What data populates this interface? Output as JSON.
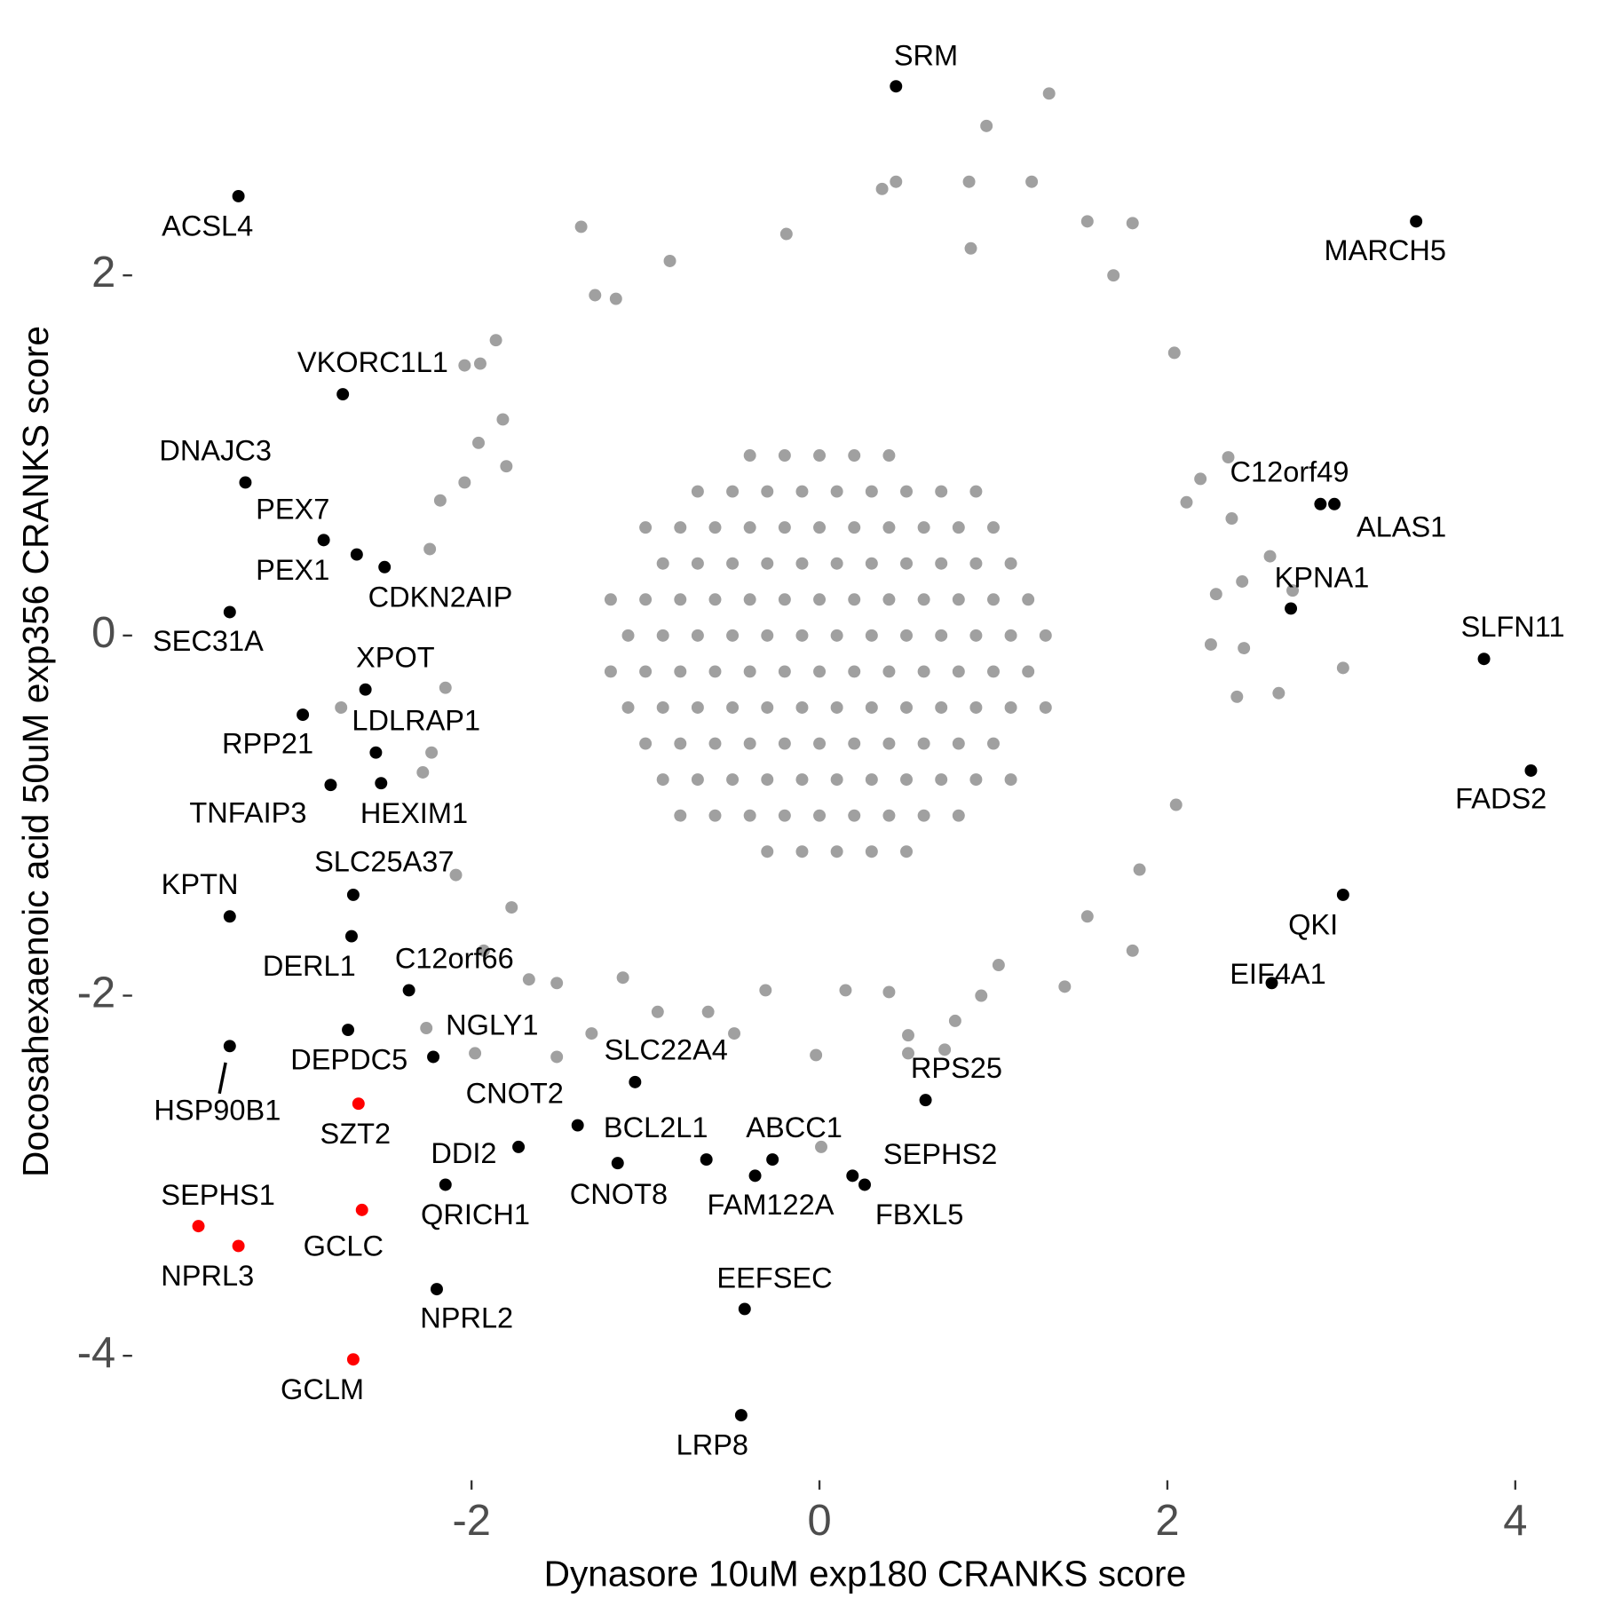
{
  "chart_data": {
    "type": "scatter",
    "xlabel": "Dynasore 10uM exp180 CRANKS score",
    "ylabel": "Docosahexaenoic acid 50uM exp356 CRANKS score",
    "xlim": [
      -3.88,
      4.25
    ],
    "ylim": [
      -4.64,
      3.3
    ],
    "xticks": [
      -2,
      0,
      2,
      4
    ],
    "yticks": [
      -4,
      -2,
      0,
      2
    ],
    "grid": false,
    "series": [
      {
        "color": "#a0a0a0",
        "x": [
          -0.4,
          -0.2,
          0,
          0.2,
          0.4,
          -0.7,
          -0.5,
          -0.3,
          -0.1,
          0.1,
          0.3,
          0.5,
          0.7,
          0.9,
          -1.0,
          -0.8,
          -0.6,
          -0.4,
          -0.2,
          0,
          0.2,
          0.4,
          0.6,
          0.8,
          1.0,
          -0.9,
          -0.7,
          -0.5,
          -0.3,
          -0.1,
          0.1,
          0.3,
          0.5,
          0.7,
          0.9,
          1.1,
          -1.2,
          -1.0,
          -0.8,
          -0.6,
          -0.4,
          -0.2,
          0,
          0.2,
          0.4,
          0.6,
          0.8,
          1.0,
          1.2,
          -1.1,
          -0.9,
          -0.7,
          -0.5,
          -0.3,
          -0.1,
          0.1,
          0.3,
          0.5,
          0.7,
          0.9,
          1.1,
          1.3,
          -1.2,
          -1.0,
          -0.8,
          -0.6,
          -0.4,
          -0.2,
          0,
          0.2,
          0.4,
          0.6,
          0.8,
          1.0,
          1.2,
          -1.1,
          -0.9,
          -0.7,
          -0.5,
          -0.3,
          -0.1,
          0.1,
          0.3,
          0.5,
          0.7,
          0.9,
          1.1,
          1.3,
          -1.0,
          -0.8,
          -0.6,
          -0.4,
          -0.2,
          0,
          0.2,
          0.4,
          0.6,
          0.8,
          1.0,
          -0.9,
          -0.7,
          -0.5,
          -0.3,
          -0.1,
          0.1,
          0.3,
          0.5,
          0.7,
          0.9,
          1.1,
          -0.8,
          -0.6,
          -0.4,
          -0.2,
          0,
          0.2,
          0.4,
          0.6,
          0.8,
          -0.3,
          -0.1,
          0.1,
          0.3,
          0.5,
          1.32,
          0.96,
          0.36,
          0.44,
          0.86,
          1.22,
          1.54,
          1.8,
          -1.37,
          -0.19,
          1.69,
          0.87,
          -0.86,
          -1.29,
          -1.17,
          -1.86,
          -1.95,
          -2.04,
          2.04,
          -1.82,
          -1.96,
          2.35,
          2.19,
          -1.8,
          -2.04,
          -2.18,
          2.11,
          2.37,
          -2.24,
          2.59,
          2.72,
          2.43,
          2.28,
          3.01,
          2.64,
          2.4,
          2.25,
          2.44,
          -2.75,
          -2.15,
          -2.23,
          -2.28,
          2.05,
          1.84,
          1.54,
          1.8,
          1.03,
          1.41,
          -1.93,
          -2.09,
          0.51,
          0.51,
          0.01,
          -1.98,
          -2.26,
          -1.51,
          -1.31,
          -0.02,
          -0.49,
          -0.64,
          -0.93,
          -0.31,
          -1.67,
          -1.51,
          0.72,
          0.78,
          0.93,
          0.15,
          0.4,
          -1.13,
          -1.77
        ],
        "values": [
          1.0,
          1.0,
          1.0,
          1.0,
          1.0,
          0.8,
          0.8,
          0.8,
          0.8,
          0.8,
          0.8,
          0.8,
          0.8,
          0.8,
          0.6,
          0.6,
          0.6,
          0.6,
          0.6,
          0.6,
          0.6,
          0.6,
          0.6,
          0.6,
          0.6,
          0.4,
          0.4,
          0.4,
          0.4,
          0.4,
          0.4,
          0.4,
          0.4,
          0.4,
          0.4,
          0.4,
          0.2,
          0.2,
          0.2,
          0.2,
          0.2,
          0.2,
          0.2,
          0.2,
          0.2,
          0.2,
          0.2,
          0.2,
          0.2,
          0,
          0,
          0,
          0,
          0,
          0,
          0,
          0,
          0,
          0,
          0,
          0,
          0,
          -0.2,
          -0.2,
          -0.2,
          -0.2,
          -0.2,
          -0.2,
          -0.2,
          -0.2,
          -0.2,
          -0.2,
          -0.2,
          -0.2,
          -0.2,
          -0.4,
          -0.4,
          -0.4,
          -0.4,
          -0.4,
          -0.4,
          -0.4,
          -0.4,
          -0.4,
          -0.4,
          -0.4,
          -0.4,
          -0.4,
          -0.6,
          -0.6,
          -0.6,
          -0.6,
          -0.6,
          -0.6,
          -0.6,
          -0.6,
          -0.6,
          -0.6,
          -0.6,
          -0.8,
          -0.8,
          -0.8,
          -0.8,
          -0.8,
          -0.8,
          -0.8,
          -0.8,
          -0.8,
          -0.8,
          -0.8,
          -1.0,
          -1.0,
          -1.0,
          -1.0,
          -1.0,
          -1.0,
          -1.0,
          -1.0,
          -1.0,
          -1.2,
          -1.2,
          -1.2,
          -1.2,
          -1.2,
          3.01,
          2.83,
          2.48,
          2.52,
          2.52,
          2.52,
          2.3,
          2.29,
          2.27,
          2.23,
          2.0,
          2.15,
          2.08,
          1.89,
          1.87,
          1.64,
          1.51,
          1.5,
          1.57,
          1.2,
          1.07,
          0.99,
          0.87,
          0.94,
          0.85,
          0.75,
          0.74,
          0.65,
          0.48,
          0.44,
          0.25,
          0.3,
          0.23,
          -0.18,
          -0.32,
          -0.34,
          -0.05,
          -0.07,
          -0.4,
          -0.29,
          -0.65,
          -0.76,
          -0.94,
          -1.3,
          -1.56,
          -1.75,
          -1.83,
          -1.95,
          -1.75,
          -1.33,
          -2.22,
          -2.32,
          -2.84,
          -2.32,
          -2.18,
          -2.34,
          -2.21,
          -2.33,
          -2.21,
          -2.09,
          -2.09,
          -1.97,
          -1.91,
          -1.93,
          -2.3,
          -2.14,
          -2.0,
          -1.97,
          -1.98,
          -1.9,
          -1.51
        ]
      },
      {
        "color": "#000000",
        "labels": [
          "SRM",
          "ACSL4",
          "MARCH5",
          "VKORC1L1",
          "DNAJC3",
          "PEX7",
          "PEX1",
          "CDKN2AIP",
          "SEC31A",
          "C12orf49",
          "ALAS1",
          "KPNA1",
          "SLFN11",
          "XPOT",
          "RPP21",
          "LDLRAP1",
          "TNFAIP3",
          "HEXIM1",
          "FADS2",
          "SLC25A37",
          "KPTN",
          "DERL1",
          "QKI",
          "EIF4A1",
          "C12orf66",
          "DEPDC5",
          "HSP90B1",
          "NGLY1",
          "SLC22A4",
          "RPS25",
          "CNOT2",
          "DDI2",
          "CNOT8",
          "BCL2L1",
          "ABCC1",
          "FAM122A",
          "SEPHS2",
          "FBXL5",
          "QRICH1",
          "NPRL2",
          "EEFSEC",
          "LRP8"
        ],
        "x": [
          0.44,
          -3.34,
          3.43,
          -2.74,
          -3.3,
          -2.85,
          -2.66,
          -2.5,
          -3.39,
          2.88,
          2.96,
          2.71,
          3.82,
          -2.61,
          -2.97,
          -2.55,
          -2.81,
          -2.52,
          4.09,
          -2.68,
          -3.39,
          -2.69,
          3.01,
          2.6,
          -2.36,
          -2.71,
          -3.39,
          -2.22,
          -1.06,
          0.61,
          -1.39,
          -1.73,
          -1.16,
          -0.65,
          -0.27,
          -0.37,
          0.19,
          0.26,
          -2.15,
          -2.2,
          -0.43,
          -0.45
        ],
        "values": [
          3.05,
          2.44,
          2.3,
          1.34,
          0.85,
          0.53,
          0.45,
          0.38,
          0.13,
          0.73,
          0.73,
          0.15,
          -0.13,
          -0.3,
          -0.44,
          -0.65,
          -0.83,
          -0.82,
          -0.75,
          -1.44,
          -1.56,
          -1.67,
          -1.44,
          -1.93,
          -1.97,
          -2.19,
          -2.28,
          -2.34,
          -2.48,
          -2.58,
          -2.72,
          -2.84,
          -2.93,
          -2.91,
          -2.91,
          -3.0,
          -3.0,
          -3.05,
          -3.05,
          -3.63,
          -3.74,
          -4.33
        ]
      },
      {
        "color": "#ff0000",
        "labels": [
          "SZT2",
          "GCLC",
          "SEPHS1",
          "NPRL3",
          "GCLM"
        ],
        "x": [
          -2.65,
          -2.63,
          -3.57,
          -3.34,
          -2.68
        ],
        "values": [
          -2.6,
          -3.19,
          -3.28,
          -3.39,
          -4.02
        ]
      }
    ]
  }
}
